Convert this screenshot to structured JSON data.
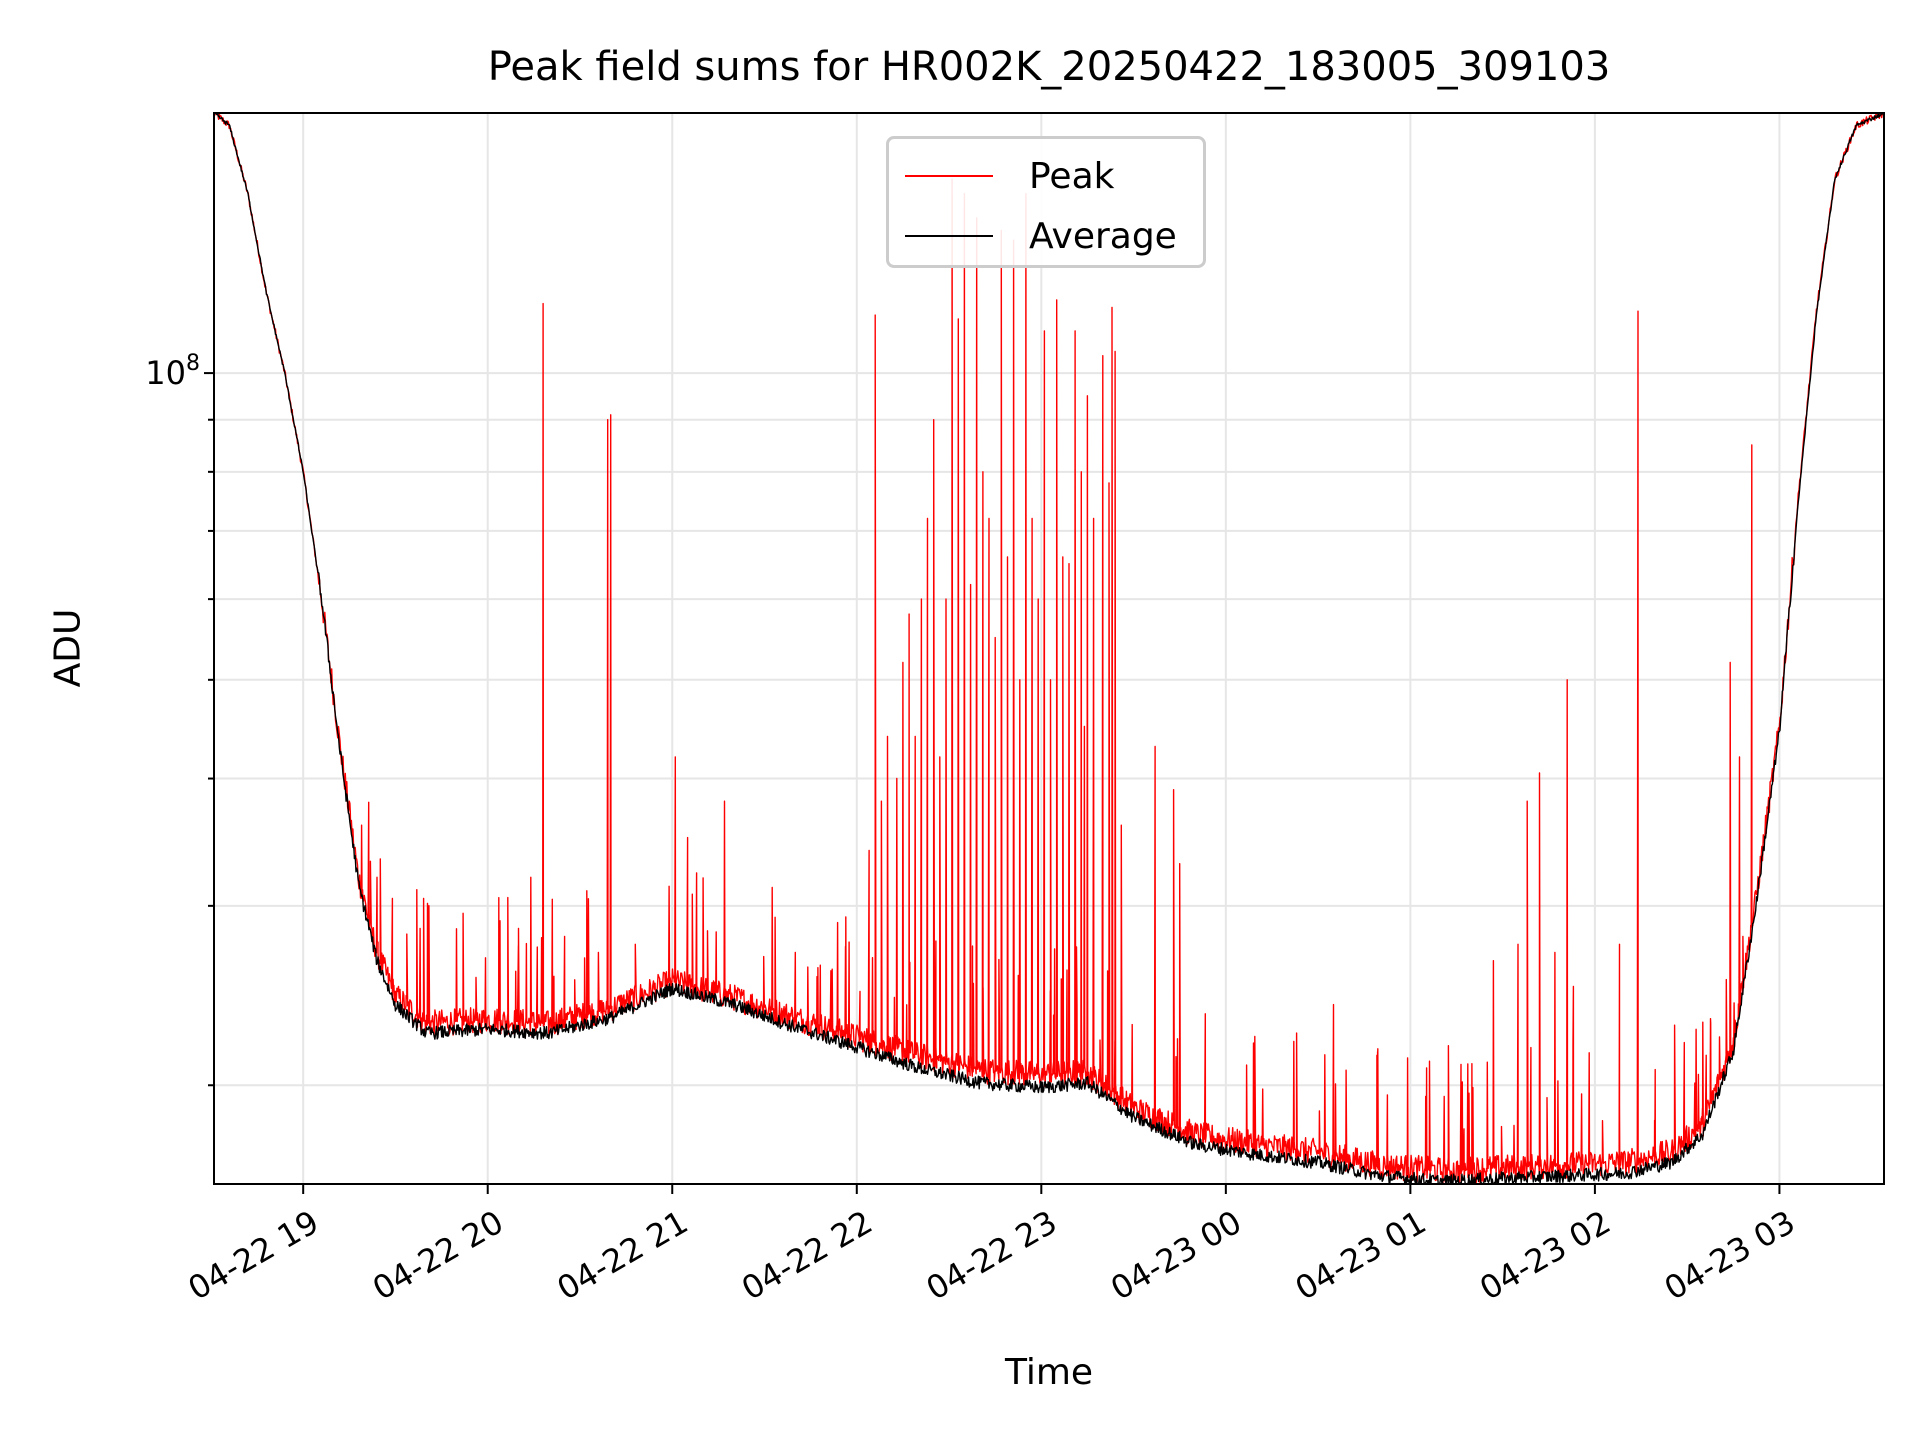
{
  "chart_data": {
    "type": "line",
    "title": "Peak field sums for HR002K_20250422_183005_309103",
    "xlabel": "Time",
    "ylabel": "ADU",
    "y_scale": "log",
    "ylim": [
      16000000,
      180000000
    ],
    "xlim": [
      "2025-04-22 18:31",
      "2025-04-23 03:34"
    ],
    "grid": true,
    "legend_placement": "upper center",
    "x_ticks": [
      "2025-04-22 19:00",
      "2025-04-22 20:00",
      "2025-04-22 21:00",
      "2025-04-22 22:00",
      "2025-04-22 23:00",
      "2025-04-23 00:00",
      "2025-04-23 01:00",
      "2025-04-23 02:00",
      "2025-04-23 03:00"
    ],
    "x_tick_labels": [
      "04-22 19",
      "04-22 20",
      "04-22 21",
      "04-22 22",
      "04-22 23",
      "04-23 00",
      "04-23 01",
      "04-23 02",
      "04-23 03"
    ],
    "y_major_tick_label": "10^8",
    "y_major_tick_value": 100000000,
    "series": [
      {
        "name": "Peak",
        "color": "#ff0000",
        "baseline": {
          "x": [
            "2025-04-22 18:31",
            "2025-04-22 18:36",
            "2025-04-22 18:42",
            "2025-04-22 18:48",
            "2025-04-22 18:54",
            "2025-04-22 19:00",
            "2025-04-22 19:06",
            "2025-04-22 19:12",
            "2025-04-22 19:18",
            "2025-04-22 19:24",
            "2025-04-22 19:30",
            "2025-04-22 19:40",
            "2025-04-22 20:00",
            "2025-04-22 20:20",
            "2025-04-22 20:40",
            "2025-04-22 21:00",
            "2025-04-22 21:20",
            "2025-04-22 21:40",
            "2025-04-22 22:00",
            "2025-04-22 22:20",
            "2025-04-22 22:40",
            "2025-04-22 23:00",
            "2025-04-22 23:15",
            "2025-04-22 23:30",
            "2025-04-22 23:50",
            "2025-04-23 00:10",
            "2025-04-23 00:30",
            "2025-04-23 00:50",
            "2025-04-23 01:10",
            "2025-04-23 01:30",
            "2025-04-23 01:50",
            "2025-04-23 02:10",
            "2025-04-23 02:25",
            "2025-04-23 02:35",
            "2025-04-23 02:45",
            "2025-04-23 02:52",
            "2025-04-23 03:00",
            "2025-04-23 03:06",
            "2025-04-23 03:12",
            "2025-04-23 03:18",
            "2025-04-23 03:25",
            "2025-04-23 03:34"
          ],
          "y": [
            180000000,
            175000000,
            150000000,
            120000000,
            100000000,
            80000000,
            60000000,
            43000000,
            32000000,
            27000000,
            24500000,
            23000000,
            23200000,
            23000000,
            23800000,
            25300000,
            24400000,
            23300000,
            22300000,
            21400000,
            20700000,
            20500000,
            20600000,
            19000000,
            17900000,
            17500000,
            17200000,
            16700000,
            16500000,
            16600000,
            16700000,
            16800000,
            17200000,
            18300000,
            22000000,
            30000000,
            45000000,
            75000000,
            115000000,
            155000000,
            175000000,
            180000000
          ]
        },
        "spikes": [
          [
            "2025-04-22 19:15",
            38000000
          ],
          [
            "2025-04-22 19:19",
            36000000
          ],
          [
            "2025-04-22 19:24",
            32000000
          ],
          [
            "2025-04-22 19:29",
            30500000
          ],
          [
            "2025-04-22 19:38",
            28500000
          ],
          [
            "2025-04-22 19:52",
            29500000
          ],
          [
            "2025-04-22 20:04",
            29000000
          ],
          [
            "2025-04-22 20:10",
            28500000
          ],
          [
            "2025-04-22 20:14",
            32000000
          ],
          [
            "2025-04-22 20:18",
            117000000
          ],
          [
            "2025-04-22 20:25",
            28000000
          ],
          [
            "2025-04-22 20:36",
            27000000
          ],
          [
            "2025-04-22 20:39",
            90000000
          ],
          [
            "2025-04-22 20:40",
            91000000
          ],
          [
            "2025-04-22 20:48",
            27500000
          ],
          [
            "2025-04-22 21:01",
            42000000
          ],
          [
            "2025-04-22 21:05",
            35000000
          ],
          [
            "2025-04-22 21:17",
            38000000
          ],
          [
            "2025-04-22 21:40",
            27000000
          ],
          [
            "2025-04-22 21:52",
            26000000
          ],
          [
            "2025-04-22 22:04",
            34000000
          ],
          [
            "2025-04-22 22:06",
            114000000
          ],
          [
            "2025-04-22 22:08",
            38000000
          ],
          [
            "2025-04-22 22:10",
            44000000
          ],
          [
            "2025-04-22 22:13",
            40000000
          ],
          [
            "2025-04-22 22:15",
            52000000
          ],
          [
            "2025-04-22 22:17",
            58000000
          ],
          [
            "2025-04-22 22:19",
            44000000
          ],
          [
            "2025-04-22 22:21",
            60000000
          ],
          [
            "2025-04-22 22:23",
            72000000
          ],
          [
            "2025-04-22 22:25",
            90000000
          ],
          [
            "2025-04-22 22:27",
            42000000
          ],
          [
            "2025-04-22 22:29",
            60000000
          ],
          [
            "2025-04-22 22:31",
            155000000
          ],
          [
            "2025-04-22 22:33",
            113000000
          ],
          [
            "2025-04-22 22:35",
            150000000
          ],
          [
            "2025-04-22 22:37",
            62000000
          ],
          [
            "2025-04-22 22:39",
            142000000
          ],
          [
            "2025-04-22 22:41",
            80000000
          ],
          [
            "2025-04-22 22:43",
            72000000
          ],
          [
            "2025-04-22 22:45",
            55000000
          ],
          [
            "2025-04-22 22:47",
            138000000
          ],
          [
            "2025-04-22 22:49",
            66000000
          ],
          [
            "2025-04-22 22:51",
            135000000
          ],
          [
            "2025-04-22 22:53",
            50000000
          ],
          [
            "2025-04-22 22:55",
            150000000
          ],
          [
            "2025-04-22 22:57",
            72000000
          ],
          [
            "2025-04-22 22:59",
            60000000
          ],
          [
            "2025-04-22 23:01",
            110000000
          ],
          [
            "2025-04-22 23:03",
            50000000
          ],
          [
            "2025-04-22 23:05",
            118000000
          ],
          [
            "2025-04-22 23:07",
            66000000
          ],
          [
            "2025-04-22 23:09",
            65000000
          ],
          [
            "2025-04-22 23:11",
            110000000
          ],
          [
            "2025-04-22 23:13",
            80000000
          ],
          [
            "2025-04-22 23:14",
            45000000
          ],
          [
            "2025-04-22 23:15",
            95000000
          ],
          [
            "2025-04-22 23:17",
            72000000
          ],
          [
            "2025-04-22 23:20",
            104000000
          ],
          [
            "2025-04-22 23:22",
            78000000
          ],
          [
            "2025-04-22 23:23",
            116000000
          ],
          [
            "2025-04-22 23:24",
            105000000
          ],
          [
            "2025-04-22 23:26",
            36000000
          ],
          [
            "2025-04-22 23:37",
            43000000
          ],
          [
            "2025-04-22 23:43",
            39000000
          ],
          [
            "2025-04-22 23:45",
            33000000
          ],
          [
            "2025-04-23 00:09",
            22000000
          ],
          [
            "2025-04-23 00:23",
            22500000
          ],
          [
            "2025-04-23 00:35",
            24000000
          ],
          [
            "2025-04-23 01:05",
            19500000
          ],
          [
            "2025-04-23 01:11",
            19500000
          ],
          [
            "2025-04-23 01:20",
            21000000
          ],
          [
            "2025-04-23 01:27",
            26500000
          ],
          [
            "2025-04-23 01:35",
            27500000
          ],
          [
            "2025-04-23 01:38",
            38000000
          ],
          [
            "2025-04-23 01:42",
            40500000
          ],
          [
            "2025-04-23 01:47",
            27000000
          ],
          [
            "2025-04-23 01:51",
            50000000
          ],
          [
            "2025-04-23 01:53",
            25000000
          ],
          [
            "2025-04-23 02:08",
            27500000
          ],
          [
            "2025-04-23 02:14",
            115000000
          ],
          [
            "2025-04-23 02:35",
            19000000
          ],
          [
            "2025-04-23 02:44",
            52000000
          ],
          [
            "2025-04-23 02:47",
            42000000
          ],
          [
            "2025-04-23 02:51",
            85000000
          ]
        ],
        "noise_fraction": 0.03
      },
      {
        "name": "Average",
        "color": "#000000",
        "baseline": {
          "x": [
            "2025-04-22 18:31",
            "2025-04-22 18:36",
            "2025-04-22 18:42",
            "2025-04-22 18:48",
            "2025-04-22 18:54",
            "2025-04-22 19:00",
            "2025-04-22 19:06",
            "2025-04-22 19:12",
            "2025-04-22 19:18",
            "2025-04-22 19:24",
            "2025-04-22 19:30",
            "2025-04-22 19:40",
            "2025-04-22 20:00",
            "2025-04-22 20:20",
            "2025-04-22 20:40",
            "2025-04-22 21:00",
            "2025-04-22 21:20",
            "2025-04-22 21:40",
            "2025-04-22 22:00",
            "2025-04-22 22:20",
            "2025-04-22 22:40",
            "2025-04-22 23:00",
            "2025-04-22 23:15",
            "2025-04-22 23:30",
            "2025-04-22 23:50",
            "2025-04-23 00:10",
            "2025-04-23 00:30",
            "2025-04-23 00:50",
            "2025-04-23 01:10",
            "2025-04-23 01:30",
            "2025-04-23 01:50",
            "2025-04-23 02:10",
            "2025-04-23 02:25",
            "2025-04-23 02:35",
            "2025-04-23 02:45",
            "2025-04-23 02:52",
            "2025-04-23 03:00",
            "2025-04-23 03:06",
            "2025-04-23 03:12",
            "2025-04-23 03:18",
            "2025-04-23 03:25",
            "2025-04-23 03:34"
          ],
          "y": [
            180000000,
            175000000,
            150000000,
            120000000,
            100000000,
            80000000,
            60000000,
            42500000,
            31500000,
            26500000,
            24000000,
            22500000,
            22700000,
            22500000,
            23300000,
            24900000,
            24000000,
            22800000,
            21800000,
            20800000,
            20100000,
            19900000,
            20100000,
            18600000,
            17500000,
            17100000,
            16800000,
            16300000,
            16100000,
            16200000,
            16300000,
            16400000,
            16800000,
            17900000,
            21600000,
            29500000,
            44500000,
            74000000,
            114000000,
            155000000,
            175000000,
            180000000
          ]
        },
        "noise_fraction": 0.015
      }
    ]
  }
}
